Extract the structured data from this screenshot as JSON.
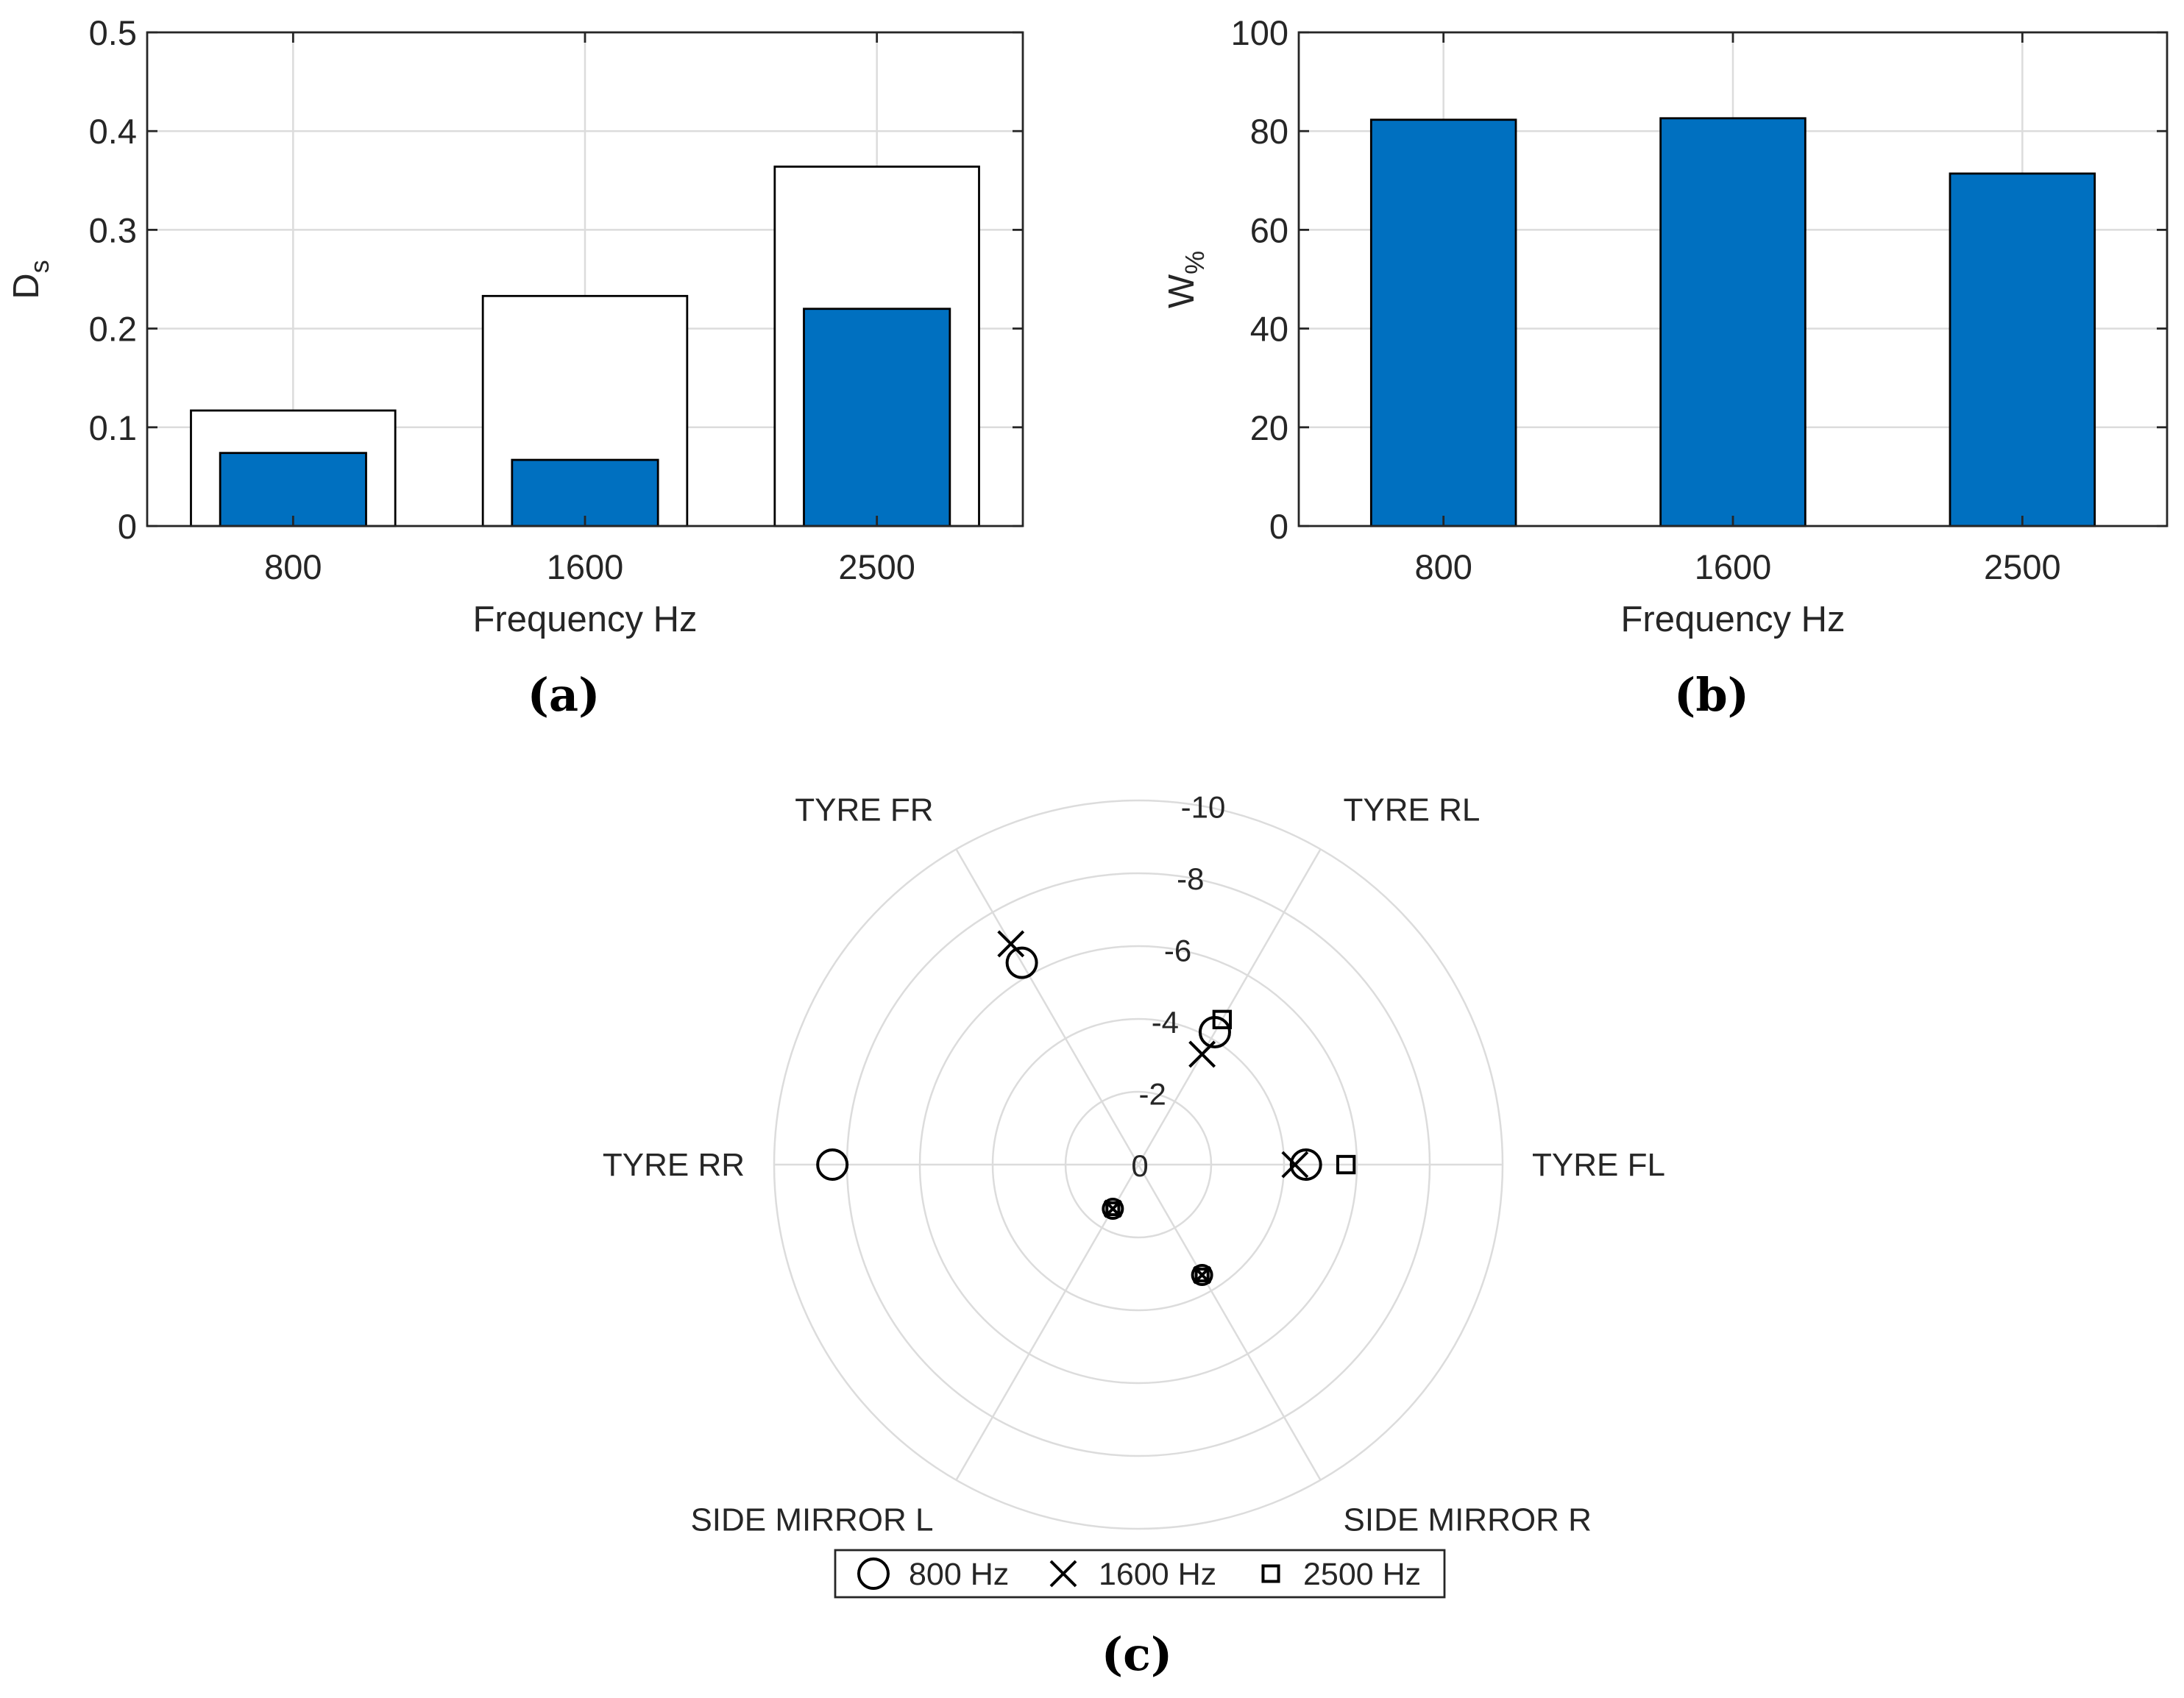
{
  "colors": {
    "bar_fill": "#0070c0",
    "grid": "#dcdcdc",
    "axis": "#262626"
  },
  "panel_a": {
    "caption_letter": "a"
  },
  "panel_b": {
    "caption_letter": "b"
  },
  "panel_c": {
    "caption_letter": "c"
  },
  "chart_data": [
    {
      "type": "bar",
      "panel": "a",
      "title": "",
      "xlabel": "Frequency Hz",
      "ylabel_main": "D",
      "ylabel_sub": "s",
      "categories": [
        "800",
        "1600",
        "2500"
      ],
      "series": [
        {
          "name": "outline",
          "style": "white-outline",
          "values": [
            0.117,
            0.233,
            0.364
          ]
        },
        {
          "name": "filled",
          "style": "blue-filled",
          "values": [
            0.074,
            0.067,
            0.22
          ]
        }
      ],
      "ylim": [
        0,
        0.5
      ],
      "yticks": [
        0,
        0.1,
        0.2,
        0.3,
        0.4,
        0.5
      ],
      "ytick_labels": [
        "0",
        "0.1",
        "0.2",
        "0.3",
        "0.4",
        "0.5"
      ],
      "grid": true
    },
    {
      "type": "bar",
      "panel": "b",
      "title": "",
      "xlabel": "Frequency Hz",
      "ylabel_main": "W",
      "ylabel_sub": "%",
      "categories": [
        "800",
        "1600",
        "2500"
      ],
      "values": [
        82.3,
        82.6,
        71.4
      ],
      "ylim": [
        0,
        100
      ],
      "yticks": [
        0,
        20,
        40,
        60,
        80,
        100
      ],
      "ytick_labels": [
        "0",
        "20",
        "40",
        "60",
        "80",
        "100"
      ],
      "grid": true
    },
    {
      "type": "scatter",
      "subtype": "polar",
      "panel": "c",
      "title": "",
      "rlim": [
        0,
        -10
      ],
      "rticks": [
        0,
        -2,
        -4,
        -6,
        -8,
        -10
      ],
      "rtick_labels": [
        "0",
        "-2",
        "-4",
        "-6",
        "-8",
        "-10"
      ],
      "directions": [
        {
          "label": "TYRE FL",
          "angle_deg": 0
        },
        {
          "label": "TYRE RL",
          "angle_deg": 60
        },
        {
          "label": "TYRE FR",
          "angle_deg": 120
        },
        {
          "label": "TYRE RR",
          "angle_deg": 180
        },
        {
          "label": "SIDE MIRROR L",
          "angle_deg": 240
        },
        {
          "label": "SIDE MIRROR R",
          "angle_deg": 300
        }
      ],
      "series": [
        {
          "name": "800 Hz",
          "marker": "circle",
          "values": [
            -4.6,
            -4.2,
            -6.4,
            -8.4,
            -1.4,
            -3.5
          ]
        },
        {
          "name": "1600 Hz",
          "marker": "x",
          "values": [
            -4.3,
            -3.5,
            -7.0,
            null,
            -1.4,
            -3.5
          ]
        },
        {
          "name": "2500 Hz",
          "marker": "square",
          "values": [
            -5.7,
            -4.6,
            null,
            null,
            -1.4,
            -3.5
          ]
        }
      ],
      "legend_position": "bottom-center",
      "grid": true
    }
  ]
}
